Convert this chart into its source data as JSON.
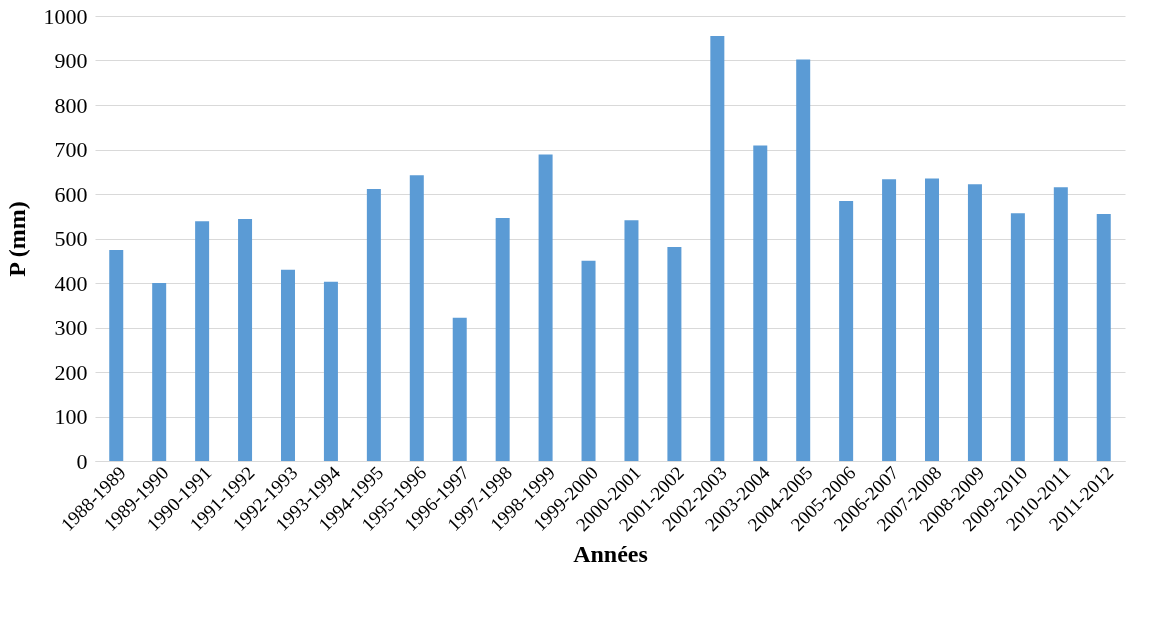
{
  "chart_data": {
    "type": "bar",
    "xlabel": "Années",
    "ylabel": "P (mm)",
    "categories": [
      "1988-1989",
      "1989-1990",
      "1990-1991",
      "1991-1992",
      "1992-1993",
      "1993-1994",
      "1994-1995",
      "1995-1996",
      "1996-1997",
      "1997-1998",
      "1998-1999",
      "1999-2000",
      "2000-2001",
      "2001-2002",
      "2002-2003",
      "2003-2004",
      "2004-2005",
      "2005-2006",
      "2006-2007",
      "2007-2008",
      "2008-2009",
      "2009-2010",
      "2010-2011",
      "2011-2012"
    ],
    "series": [
      {
        "color": "#5b9bd5",
        "values": [
          474,
          400,
          539,
          544,
          430,
          403,
          611,
          642,
          322,
          546,
          689,
          450,
          541,
          481,
          955,
          709,
          902,
          584,
          633,
          635,
          622,
          557,
          615,
          555
        ]
      }
    ],
    "ylim": [
      0,
      1000
    ],
    "yticks": [
      0,
      100,
      200,
      300,
      400,
      500,
      600,
      700,
      800,
      900,
      1000
    ],
    "grid": "y"
  }
}
